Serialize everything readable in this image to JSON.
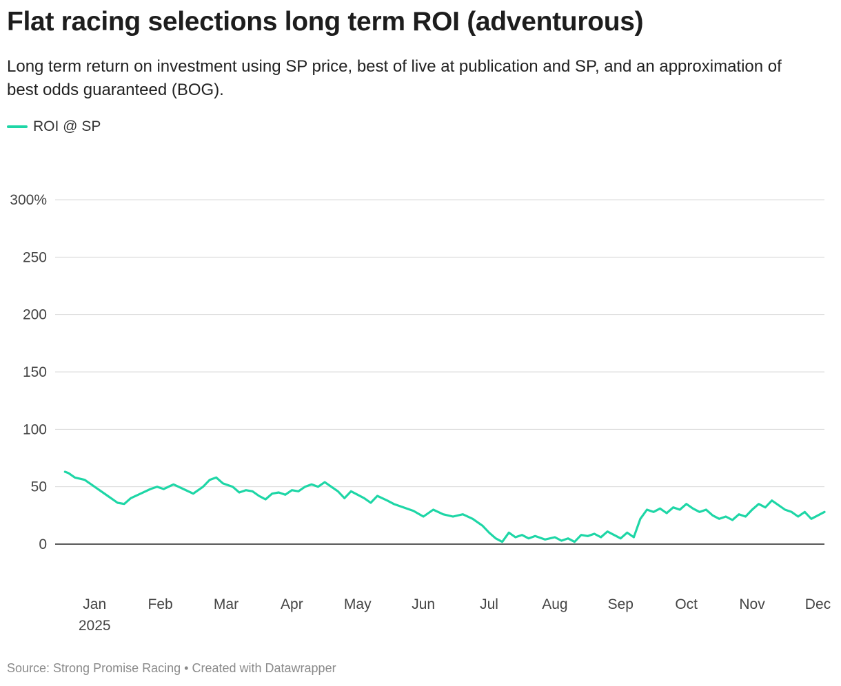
{
  "title": "Flat racing selections long term ROI (adventurous)",
  "subtitle": "Long term return on investment using SP price, best of live at publication and SP, and an approximation of best odds guaranteed (BOG).",
  "footer": {
    "source": "Source: Strong Promise Racing",
    "separator": "•",
    "created": "Created with Datawrapper"
  },
  "chart_data": {
    "type": "line",
    "title": "Flat racing selections long term ROI (adventurous)",
    "xlabel": "",
    "ylabel": "",
    "y_unit": "%",
    "ylim": [
      -30,
      345
    ],
    "xlim": [
      -0.1,
      11.6
    ],
    "yticks": [
      0,
      50,
      100,
      150,
      200,
      250,
      300
    ],
    "ytick_labels": [
      "0",
      "50",
      "100",
      "150",
      "200",
      "250",
      "300%"
    ],
    "xticks": [
      {
        "label": "Jan",
        "sublabel": "2025",
        "x": 0.5
      },
      {
        "label": "Feb",
        "x": 1.5
      },
      {
        "label": "Mar",
        "x": 2.5
      },
      {
        "label": "Apr",
        "x": 3.5
      },
      {
        "label": "May",
        "x": 4.5
      },
      {
        "label": "Jun",
        "x": 5.5
      },
      {
        "label": "Jul",
        "x": 6.5
      },
      {
        "label": "Aug",
        "x": 7.5
      },
      {
        "label": "Sep",
        "x": 8.5
      },
      {
        "label": "Oct",
        "x": 9.5
      },
      {
        "label": "Nov",
        "x": 10.5
      },
      {
        "label": "Dec",
        "x": 11.5
      }
    ],
    "legend_position": "top-left",
    "x_description": "month index (0 = start of January 2025)",
    "series": [
      {
        "name": "ROI @ SP",
        "color": "#1ed6a6",
        "points": [
          [
            0.05,
            63
          ],
          [
            0.1,
            62
          ],
          [
            0.2,
            58
          ],
          [
            0.35,
            56
          ],
          [
            0.5,
            50
          ],
          [
            0.7,
            42
          ],
          [
            0.85,
            36
          ],
          [
            0.95,
            35
          ],
          [
            1.05,
            40
          ],
          [
            1.2,
            44
          ],
          [
            1.35,
            48
          ],
          [
            1.45,
            50
          ],
          [
            1.55,
            48
          ],
          [
            1.7,
            52
          ],
          [
            1.85,
            48
          ],
          [
            2.0,
            44
          ],
          [
            2.15,
            50
          ],
          [
            2.25,
            56
          ],
          [
            2.35,
            58
          ],
          [
            2.45,
            53
          ],
          [
            2.6,
            50
          ],
          [
            2.7,
            45
          ],
          [
            2.8,
            47
          ],
          [
            2.9,
            46
          ],
          [
            3.0,
            42
          ],
          [
            3.1,
            39
          ],
          [
            3.2,
            44
          ],
          [
            3.3,
            45
          ],
          [
            3.4,
            43
          ],
          [
            3.5,
            47
          ],
          [
            3.6,
            46
          ],
          [
            3.7,
            50
          ],
          [
            3.8,
            52
          ],
          [
            3.9,
            50
          ],
          [
            4.0,
            54
          ],
          [
            4.1,
            50
          ],
          [
            4.2,
            46
          ],
          [
            4.3,
            40
          ],
          [
            4.4,
            46
          ],
          [
            4.5,
            43
          ],
          [
            4.6,
            40
          ],
          [
            4.7,
            36
          ],
          [
            4.8,
            42
          ],
          [
            4.95,
            38
          ],
          [
            5.05,
            35
          ],
          [
            5.2,
            32
          ],
          [
            5.35,
            29
          ],
          [
            5.5,
            24
          ],
          [
            5.65,
            30
          ],
          [
            5.8,
            26
          ],
          [
            5.95,
            24
          ],
          [
            6.1,
            26
          ],
          [
            6.25,
            22
          ],
          [
            6.4,
            16
          ],
          [
            6.5,
            10
          ],
          [
            6.6,
            5
          ],
          [
            6.7,
            2
          ],
          [
            6.8,
            10
          ],
          [
            6.9,
            6
          ],
          [
            7.0,
            8
          ],
          [
            7.1,
            5
          ],
          [
            7.2,
            7
          ],
          [
            7.35,
            4
          ],
          [
            7.5,
            6
          ],
          [
            7.6,
            3
          ],
          [
            7.7,
            5
          ],
          [
            7.8,
            2
          ],
          [
            7.9,
            8
          ],
          [
            8.0,
            7
          ],
          [
            8.1,
            9
          ],
          [
            8.2,
            6
          ],
          [
            8.3,
            11
          ],
          [
            8.4,
            8
          ],
          [
            8.5,
            5
          ],
          [
            8.6,
            10
          ],
          [
            8.7,
            6
          ],
          [
            8.8,
            22
          ],
          [
            8.9,
            30
          ],
          [
            9.0,
            28
          ],
          [
            9.1,
            31
          ],
          [
            9.2,
            27
          ],
          [
            9.3,
            32
          ],
          [
            9.4,
            30
          ],
          [
            9.5,
            35
          ],
          [
            9.6,
            31
          ],
          [
            9.7,
            28
          ],
          [
            9.8,
            30
          ],
          [
            9.9,
            25
          ],
          [
            10.0,
            22
          ],
          [
            10.1,
            24
          ],
          [
            10.2,
            21
          ],
          [
            10.3,
            26
          ],
          [
            10.4,
            24
          ],
          [
            10.5,
            30
          ],
          [
            10.6,
            35
          ],
          [
            10.7,
            32
          ],
          [
            10.8,
            38
          ],
          [
            10.9,
            34
          ],
          [
            11.0,
            30
          ],
          [
            11.1,
            28
          ],
          [
            11.2,
            24
          ],
          [
            11.3,
            28
          ],
          [
            11.4,
            22
          ],
          [
            11.5,
            25
          ],
          [
            11.6,
            28
          ]
        ]
      }
    ]
  }
}
